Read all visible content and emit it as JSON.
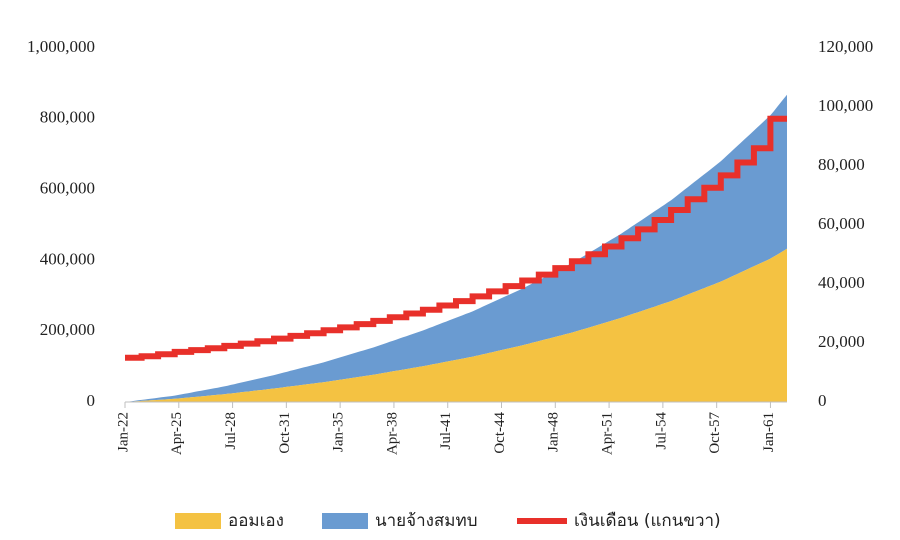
{
  "chart_data": {
    "type": "area",
    "title": "",
    "xlabel": "",
    "ylabel": "",
    "x_tick_labels": [
      "Jan-22",
      "Apr-25",
      "Jul-28",
      "Oct-31",
      "Jan-35",
      "Apr-38",
      "Jul-41",
      "Oct-44",
      "Jan-48",
      "Apr-51",
      "Jul-54",
      "Oct-57",
      "Jan-61"
    ],
    "x_start": "Jan-22",
    "x_end": "Jan-62",
    "y_left": {
      "ylim": [
        0,
        1000000
      ],
      "ticks": [
        "0",
        "200,000",
        "400,000",
        "600,000",
        "800,000",
        "1,000,000"
      ]
    },
    "y_right": {
      "ylim": [
        0,
        120000
      ],
      "ticks": [
        "0",
        "20,000",
        "40,000",
        "60,000",
        "80,000",
        "100,000",
        "120,000"
      ]
    },
    "grid": false,
    "legend_position": "bottom",
    "series": [
      {
        "name": "ออมเอง",
        "chart_type": "stacked-area",
        "axis": "left",
        "color": "#F4C242",
        "sample_years": [
          "Jan-22",
          "Jan-25",
          "Jan-28",
          "Jan-31",
          "Jan-34",
          "Jan-37",
          "Jan-40",
          "Jan-43",
          "Jan-46",
          "Jan-49",
          "Jan-52",
          "Jan-55",
          "Jan-58",
          "Jan-61",
          "Jan-62"
        ],
        "values": [
          0,
          9000,
          22000,
          38000,
          56000,
          77000,
          101000,
          128000,
          160000,
          196000,
          238000,
          285000,
          340000,
          405000,
          433000
        ]
      },
      {
        "name": "นายจ้างสมทบ",
        "chart_type": "stacked-area",
        "axis": "left",
        "color": "#6A9BD1",
        "sample_years": [
          "Jan-22",
          "Jan-25",
          "Jan-28",
          "Jan-31",
          "Jan-34",
          "Jan-37",
          "Jan-40",
          "Jan-43",
          "Jan-46",
          "Jan-49",
          "Jan-52",
          "Jan-55",
          "Jan-58",
          "Jan-61",
          "Jan-62"
        ],
        "values": [
          0,
          9000,
          22000,
          38000,
          56000,
          77000,
          101000,
          128000,
          160000,
          196000,
          238000,
          285000,
          340000,
          405000,
          435000
        ]
      },
      {
        "name": "เงินเดือน (แกนขวา)",
        "chart_type": "step-line",
        "axis": "right",
        "color": "#E8302A",
        "start_year": "Jan-22",
        "annual_values": [
          15000,
          15500,
          16200,
          17000,
          17600,
          18200,
          19000,
          19800,
          20600,
          21500,
          22400,
          23300,
          24300,
          25300,
          26400,
          27500,
          28700,
          30000,
          31300,
          32700,
          34200,
          35800,
          37500,
          39300,
          41200,
          43200,
          45400,
          47700,
          50100,
          52700,
          55500,
          58500,
          61700,
          65100,
          68700,
          72600,
          76800,
          81200,
          86000,
          96000,
          100500
        ]
      }
    ]
  }
}
